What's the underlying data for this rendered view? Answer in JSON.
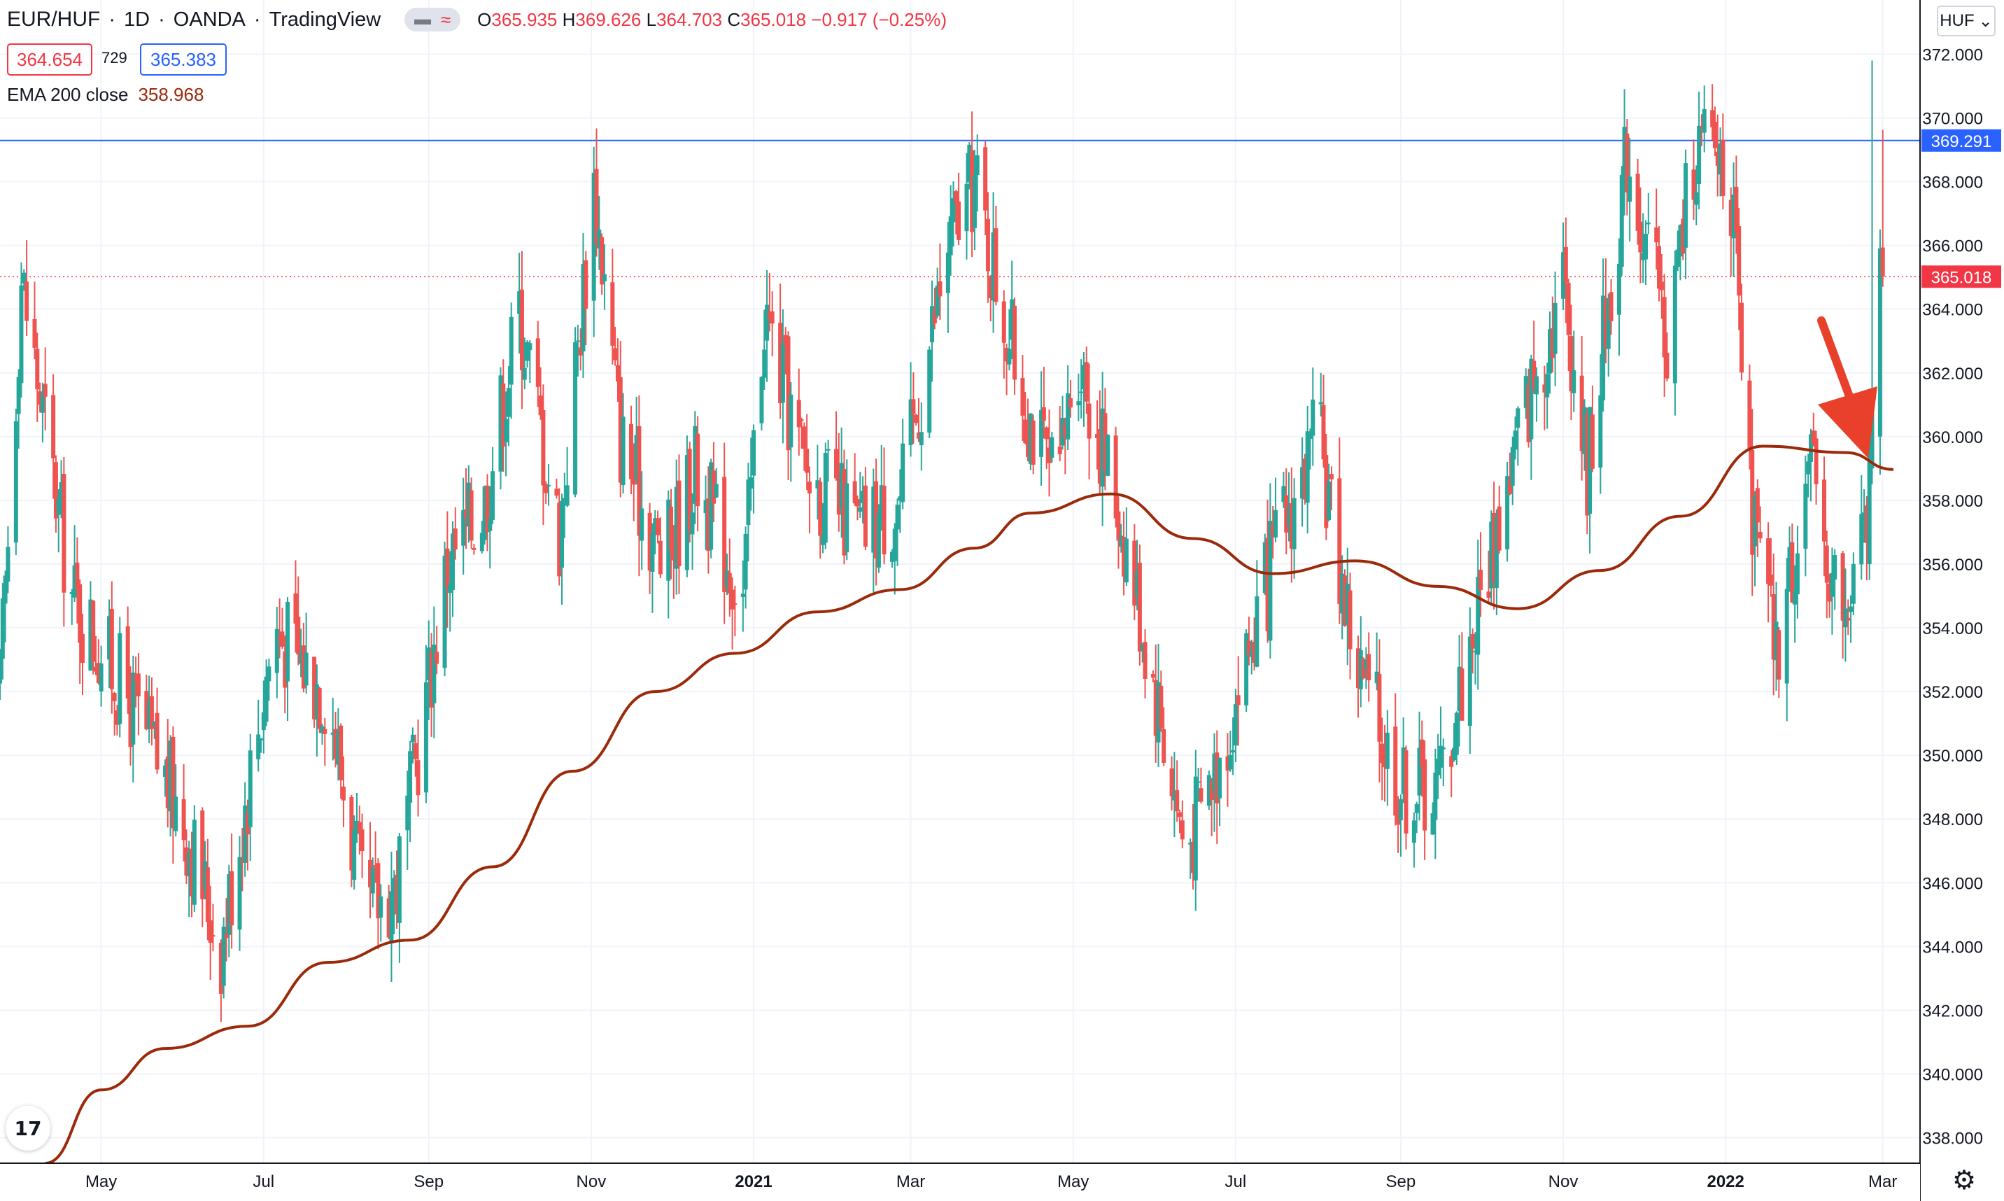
{
  "header": {
    "symbol": "EUR/HUF",
    "interval": "1D",
    "exchange": "OANDA",
    "platform": "TradingView",
    "ohlc": {
      "o_label": "O",
      "o": "365.935",
      "h_label": "H",
      "h": "369.626",
      "l_label": "L",
      "l": "364.703",
      "c_label": "C",
      "c": "365.018",
      "change": "−0.917 (−0.25%)"
    }
  },
  "quote": {
    "sell": "364.654",
    "spread": "729",
    "buy": "365.383"
  },
  "indicator": {
    "label": "EMA 200 close",
    "value": "358.968"
  },
  "currency_button": "HUF",
  "logo_text": "17",
  "colors": {
    "up": "#26a69a",
    "down": "#ef5350",
    "ema": "#9c2a0a",
    "level": "#2962ff",
    "arrow": "#e8402a",
    "last": "#f23645"
  },
  "chart_data": {
    "type": "candlestick",
    "y_ticks": [
      "338.000",
      "340.000",
      "342.000",
      "344.000",
      "346.000",
      "348.000",
      "350.000",
      "352.000",
      "354.000",
      "356.000",
      "358.000",
      "360.000",
      "362.000",
      "364.000",
      "366.000",
      "368.000",
      "370.000",
      "372.000"
    ],
    "x_ticks": [
      "May",
      "Jul",
      "Sep",
      "Nov",
      "2021",
      "Mar",
      "May",
      "Jul",
      "Sep",
      "Nov",
      "2022",
      "Mar"
    ],
    "x_range": [
      "2020-03-24",
      "2022-03-15"
    ],
    "ylim": [
      337.2,
      373.7
    ],
    "horizontal_line": {
      "value": 369.291,
      "label": "369.291"
    },
    "last_price": {
      "value": 365.018,
      "label": "365.018"
    },
    "series_waypoints": [
      {
        "date": "2020-03-24",
        "value": 352
      },
      {
        "date": "2020-04-01",
        "value": 365
      },
      {
        "date": "2020-04-20",
        "value": 355
      },
      {
        "date": "2020-05-10",
        "value": 352
      },
      {
        "date": "2020-06-01",
        "value": 348
      },
      {
        "date": "2020-06-15",
        "value": 344
      },
      {
        "date": "2020-07-05",
        "value": 354
      },
      {
        "date": "2020-07-25",
        "value": 352
      },
      {
        "date": "2020-08-08",
        "value": 345
      },
      {
        "date": "2020-08-20",
        "value": 346
      },
      {
        "date": "2020-09-08",
        "value": 356
      },
      {
        "date": "2020-09-22",
        "value": 358
      },
      {
        "date": "2020-10-05",
        "value": 364
      },
      {
        "date": "2020-10-20",
        "value": 357
      },
      {
        "date": "2020-11-02",
        "value": 368
      },
      {
        "date": "2020-11-12",
        "value": 360
      },
      {
        "date": "2020-11-28",
        "value": 356
      },
      {
        "date": "2020-12-10",
        "value": 359
      },
      {
        "date": "2020-12-28",
        "value": 355
      },
      {
        "date": "2021-01-05",
        "value": 364
      },
      {
        "date": "2021-01-20",
        "value": 359
      },
      {
        "date": "2021-02-10",
        "value": 357
      },
      {
        "date": "2021-02-25",
        "value": 358
      },
      {
        "date": "2021-03-15",
        "value": 366
      },
      {
        "date": "2021-03-25",
        "value": 368
      },
      {
        "date": "2021-04-10",
        "value": 362
      },
      {
        "date": "2021-04-25",
        "value": 358
      },
      {
        "date": "2021-05-02",
        "value": 363
      },
      {
        "date": "2021-05-20",
        "value": 357
      },
      {
        "date": "2021-06-01",
        "value": 352
      },
      {
        "date": "2021-06-12",
        "value": 347
      },
      {
        "date": "2021-06-25",
        "value": 350
      },
      {
        "date": "2021-07-05",
        "value": 353
      },
      {
        "date": "2021-07-18",
        "value": 357
      },
      {
        "date": "2021-08-01",
        "value": 360
      },
      {
        "date": "2021-08-15",
        "value": 353
      },
      {
        "date": "2021-09-01",
        "value": 349
      },
      {
        "date": "2021-09-15",
        "value": 349
      },
      {
        "date": "2021-10-01",
        "value": 355
      },
      {
        "date": "2021-10-15",
        "value": 360
      },
      {
        "date": "2021-11-01",
        "value": 365
      },
      {
        "date": "2021-11-10",
        "value": 359
      },
      {
        "date": "2021-11-25",
        "value": 369
      },
      {
        "date": "2021-12-10",
        "value": 363
      },
      {
        "date": "2021-12-20",
        "value": 369
      },
      {
        "date": "2022-01-02",
        "value": 369
      },
      {
        "date": "2022-01-10",
        "value": 358
      },
      {
        "date": "2022-01-20",
        "value": 353
      },
      {
        "date": "2022-02-01",
        "value": 359
      },
      {
        "date": "2022-02-15",
        "value": 354
      },
      {
        "date": "2022-02-25",
        "value": 358
      },
      {
        "date": "2022-03-01",
        "value": 365
      }
    ],
    "ema_waypoints": [
      {
        "date": "2020-04-10",
        "value": 337.2
      },
      {
        "date": "2020-05-01",
        "value": 339.5
      },
      {
        "date": "2020-05-25",
        "value": 340.8
      },
      {
        "date": "2020-06-25",
        "value": 341.5
      },
      {
        "date": "2020-07-25",
        "value": 343.5
      },
      {
        "date": "2020-08-25",
        "value": 344.2
      },
      {
        "date": "2020-09-25",
        "value": 346.5
      },
      {
        "date": "2020-10-25",
        "value": 349.5
      },
      {
        "date": "2020-11-25",
        "value": 352
      },
      {
        "date": "2020-12-25",
        "value": 353.2
      },
      {
        "date": "2021-01-25",
        "value": 354.5
      },
      {
        "date": "2021-02-25",
        "value": 355.2
      },
      {
        "date": "2021-03-25",
        "value": 356.5
      },
      {
        "date": "2021-04-15",
        "value": 357.6
      },
      {
        "date": "2021-05-15",
        "value": 358.2
      },
      {
        "date": "2021-06-15",
        "value": 356.8
      },
      {
        "date": "2021-07-15",
        "value": 355.7
      },
      {
        "date": "2021-08-15",
        "value": 356.1
      },
      {
        "date": "2021-09-15",
        "value": 355.3
      },
      {
        "date": "2021-10-15",
        "value": 354.6
      },
      {
        "date": "2021-11-15",
        "value": 355.8
      },
      {
        "date": "2021-12-15",
        "value": 357.5
      },
      {
        "date": "2022-01-15",
        "value": 359.7
      },
      {
        "date": "2022-02-15",
        "value": 359.5
      },
      {
        "date": "2022-03-05",
        "value": 358.968
      }
    ],
    "last_candles": [
      {
        "date": "2022-02-24",
        "open": 356.0,
        "high": 360.0,
        "low": 355.5,
        "close": 359.5
      },
      {
        "date": "2022-02-25",
        "open": 359.0,
        "high": 371.8,
        "low": 358.5,
        "close": 361.0
      },
      {
        "date": "2022-02-28",
        "open": 360.0,
        "high": 366.5,
        "low": 358.8,
        "close": 365.9
      },
      {
        "date": "2022-03-01",
        "open": 365.935,
        "high": 369.626,
        "low": 364.703,
        "close": 365.018
      }
    ],
    "annotation": "down-arrow"
  }
}
